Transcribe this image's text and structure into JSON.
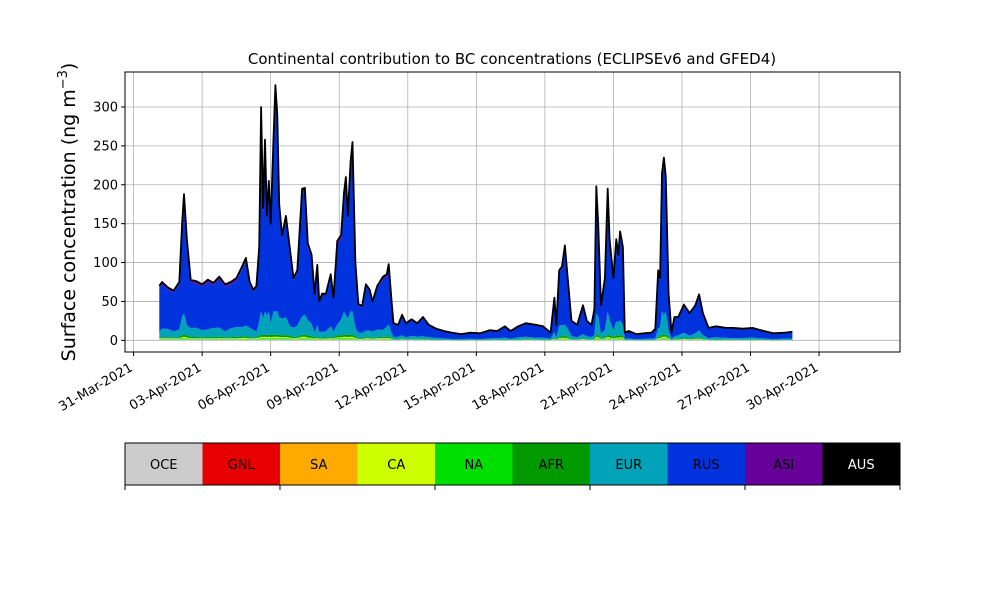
{
  "chart_data": {
    "type": "area",
    "title": "Continental contribution to BC concentrations (ECLIPSEv6 and GFED4)",
    "ylabel_main": "Surface concentration (ng m",
    "ylabel_sup": "−3",
    "ylabel_close": ")",
    "xlabel": "",
    "grid": true,
    "ylim": [
      -15,
      345
    ],
    "yticks": [
      0,
      50,
      100,
      150,
      200,
      250,
      300
    ],
    "xlim": [
      "2021-03-30T15:00",
      "2021-05-03T13:00"
    ],
    "xticks": [
      {
        "date": "2021-03-31",
        "label": "31-Mar-2021"
      },
      {
        "date": "2021-04-03",
        "label": "03-Apr-2021"
      },
      {
        "date": "2021-04-06",
        "label": "06-Apr-2021"
      },
      {
        "date": "2021-04-09",
        "label": "09-Apr-2021"
      },
      {
        "date": "2021-04-12",
        "label": "12-Apr-2021"
      },
      {
        "date": "2021-04-15",
        "label": "15-Apr-2021"
      },
      {
        "date": "2021-04-18",
        "label": "18-Apr-2021"
      },
      {
        "date": "2021-04-21",
        "label": "21-Apr-2021"
      },
      {
        "date": "2021-04-24",
        "label": "24-Apr-2021"
      },
      {
        "date": "2021-04-27",
        "label": "27-Apr-2021"
      },
      {
        "date": "2021-04-30",
        "label": "30-Apr-2021"
      }
    ],
    "legend": [
      {
        "name": "OCE",
        "color": "#cccccc",
        "text_color": "#000000"
      },
      {
        "name": "GNL",
        "color": "#e60000",
        "text_color": "#000000"
      },
      {
        "name": "SA",
        "color": "#ffaa00",
        "text_color": "#000000"
      },
      {
        "name": "CA",
        "color": "#ccff00",
        "text_color": "#000000"
      },
      {
        "name": "NA",
        "color": "#00e000",
        "text_color": "#000000"
      },
      {
        "name": "AFR",
        "color": "#009900",
        "text_color": "#000000"
      },
      {
        "name": "EUR",
        "color": "#00a3b8",
        "text_color": "#000000"
      },
      {
        "name": "RUS",
        "color": "#0033dd",
        "text_color": "#000000"
      },
      {
        "name": "ASI",
        "color": "#660099",
        "text_color": "#000000"
      },
      {
        "name": "AUS",
        "color": "#000000",
        "text_color": "#ffffff"
      }
    ],
    "legend_placement": "below",
    "total_series": {
      "name": "AUS",
      "points": [
        [
          "2021-04-01T03:00",
          70
        ],
        [
          "2021-04-01T06:00",
          75
        ],
        [
          "2021-04-01T12:00",
          68
        ],
        [
          "2021-04-01T18:00",
          64
        ],
        [
          "2021-04-02T00:00",
          75
        ],
        [
          "2021-04-02T03:00",
          150
        ],
        [
          "2021-04-02T05:00",
          188
        ],
        [
          "2021-04-02T08:00",
          130
        ],
        [
          "2021-04-02T12:00",
          78
        ],
        [
          "2021-04-02T18:00",
          76
        ],
        [
          "2021-04-03T00:00",
          72
        ],
        [
          "2021-04-03T06:00",
          78
        ],
        [
          "2021-04-03T12:00",
          74
        ],
        [
          "2021-04-03T18:00",
          82
        ],
        [
          "2021-04-04T00:00",
          72
        ],
        [
          "2021-04-04T06:00",
          75
        ],
        [
          "2021-04-04T12:00",
          80
        ],
        [
          "2021-04-04T18:00",
          95
        ],
        [
          "2021-04-04T22:00",
          106
        ],
        [
          "2021-04-05T02:00",
          75
        ],
        [
          "2021-04-05T06:00",
          65
        ],
        [
          "2021-04-05T09:00",
          70
        ],
        [
          "2021-04-05T12:00",
          120
        ],
        [
          "2021-04-05T14:00",
          300
        ],
        [
          "2021-04-05T16:00",
          170
        ],
        [
          "2021-04-05T18:00",
          258
        ],
        [
          "2021-04-05T20:00",
          160
        ],
        [
          "2021-04-05T22:00",
          205
        ],
        [
          "2021-04-06T00:00",
          150
        ],
        [
          "2021-04-06T03:00",
          260
        ],
        [
          "2021-04-06T05:00",
          328
        ],
        [
          "2021-04-06T07:00",
          290
        ],
        [
          "2021-04-06T09:00",
          175
        ],
        [
          "2021-04-06T12:00",
          135
        ],
        [
          "2021-04-06T16:00",
          160
        ],
        [
          "2021-04-06T20:00",
          120
        ],
        [
          "2021-04-07T00:00",
          80
        ],
        [
          "2021-04-07T04:00",
          90
        ],
        [
          "2021-04-07T09:00",
          195
        ],
        [
          "2021-04-07T12:00",
          196
        ],
        [
          "2021-04-07T15:00",
          125
        ],
        [
          "2021-04-07T19:00",
          110
        ],
        [
          "2021-04-07T22:00",
          60
        ],
        [
          "2021-04-08T01:00",
          97
        ],
        [
          "2021-04-08T03:00",
          50
        ],
        [
          "2021-04-08T06:00",
          60
        ],
        [
          "2021-04-08T10:00",
          60
        ],
        [
          "2021-04-08T15:00",
          85
        ],
        [
          "2021-04-08T18:00",
          55
        ],
        [
          "2021-04-08T22:00",
          128
        ],
        [
          "2021-04-09T02:00",
          135
        ],
        [
          "2021-04-09T05:00",
          190
        ],
        [
          "2021-04-09T07:00",
          210
        ],
        [
          "2021-04-09T09:00",
          160
        ],
        [
          "2021-04-09T12:00",
          230
        ],
        [
          "2021-04-09T14:00",
          255
        ],
        [
          "2021-04-09T17:00",
          100
        ],
        [
          "2021-04-09T20:00",
          47
        ],
        [
          "2021-04-10T00:00",
          44
        ],
        [
          "2021-04-10T04:00",
          72
        ],
        [
          "2021-04-10T08:00",
          65
        ],
        [
          "2021-04-10T11:00",
          50
        ],
        [
          "2021-04-10T16:00",
          70
        ],
        [
          "2021-04-10T22:00",
          82
        ],
        [
          "2021-04-11T02:00",
          85
        ],
        [
          "2021-04-11T04:00",
          98
        ],
        [
          "2021-04-11T07:00",
          50
        ],
        [
          "2021-04-11T09:00",
          22
        ],
        [
          "2021-04-11T14:00",
          20
        ],
        [
          "2021-04-11T18:00",
          33
        ],
        [
          "2021-04-11T22:00",
          22
        ],
        [
          "2021-04-12T04:00",
          27
        ],
        [
          "2021-04-12T10:00",
          22
        ],
        [
          "2021-04-12T16:00",
          30
        ],
        [
          "2021-04-12T22:00",
          20
        ],
        [
          "2021-04-13T06:00",
          15
        ],
        [
          "2021-04-13T14:00",
          12
        ],
        [
          "2021-04-13T22:00",
          10
        ],
        [
          "2021-04-14T08:00",
          8
        ],
        [
          "2021-04-14T18:00",
          10
        ],
        [
          "2021-04-15T04:00",
          9
        ],
        [
          "2021-04-15T14:00",
          13
        ],
        [
          "2021-04-15T22:00",
          12
        ],
        [
          "2021-04-16T06:00",
          18
        ],
        [
          "2021-04-16T12:00",
          12
        ],
        [
          "2021-04-16T20:00",
          18
        ],
        [
          "2021-04-17T04:00",
          22
        ],
        [
          "2021-04-17T14:00",
          20
        ],
        [
          "2021-04-17T22:00",
          18
        ],
        [
          "2021-04-18T06:00",
          10
        ],
        [
          "2021-04-18T10:00",
          55
        ],
        [
          "2021-04-18T12:00",
          20
        ],
        [
          "2021-04-18T15:00",
          90
        ],
        [
          "2021-04-18T18:00",
          95
        ],
        [
          "2021-04-18T21:00",
          122
        ],
        [
          "2021-04-19T00:00",
          80
        ],
        [
          "2021-04-19T04:00",
          25
        ],
        [
          "2021-04-19T10:00",
          20
        ],
        [
          "2021-04-19T16:00",
          45
        ],
        [
          "2021-04-19T20:00",
          25
        ],
        [
          "2021-04-20T01:00",
          20
        ],
        [
          "2021-04-20T04:00",
          40
        ],
        [
          "2021-04-20T06:00",
          198
        ],
        [
          "2021-04-20T08:00",
          150
        ],
        [
          "2021-04-20T11:00",
          45
        ],
        [
          "2021-04-20T15:00",
          80
        ],
        [
          "2021-04-20T18:00",
          195
        ],
        [
          "2021-04-20T20:00",
          130
        ],
        [
          "2021-04-21T00:00",
          80
        ],
        [
          "2021-04-21T03:00",
          130
        ],
        [
          "2021-04-21T05:00",
          110
        ],
        [
          "2021-04-21T07:00",
          140
        ],
        [
          "2021-04-21T10:00",
          120
        ],
        [
          "2021-04-21T12:00",
          10
        ],
        [
          "2021-04-21T16:00",
          12
        ],
        [
          "2021-04-22T00:00",
          8
        ],
        [
          "2021-04-22T08:00",
          9
        ],
        [
          "2021-04-22T16:00",
          10
        ],
        [
          "2021-04-22T20:00",
          15
        ],
        [
          "2021-04-22T23:00",
          90
        ],
        [
          "2021-04-23T01:00",
          80
        ],
        [
          "2021-04-23T03:00",
          215
        ],
        [
          "2021-04-23T05:00",
          235
        ],
        [
          "2021-04-23T07:00",
          210
        ],
        [
          "2021-04-23T10:00",
          60
        ],
        [
          "2021-04-23T13:00",
          10
        ],
        [
          "2021-04-23T16:00",
          30
        ],
        [
          "2021-04-23T20:00",
          30
        ],
        [
          "2021-04-24T02:00",
          46
        ],
        [
          "2021-04-24T08:00",
          35
        ],
        [
          "2021-04-24T14:00",
          45
        ],
        [
          "2021-04-24T18:00",
          59
        ],
        [
          "2021-04-24T22:00",
          35
        ],
        [
          "2021-04-25T04:00",
          16
        ],
        [
          "2021-04-25T12:00",
          18
        ],
        [
          "2021-04-25T22:00",
          16
        ],
        [
          "2021-04-26T06:00",
          16
        ],
        [
          "2021-04-26T16:00",
          15
        ],
        [
          "2021-04-27T02:00",
          16
        ],
        [
          "2021-04-27T14:00",
          12
        ],
        [
          "2021-04-28T00:00",
          9
        ],
        [
          "2021-04-28T12:00",
          10
        ],
        [
          "2021-04-28T20:00",
          11
        ]
      ]
    }
  }
}
